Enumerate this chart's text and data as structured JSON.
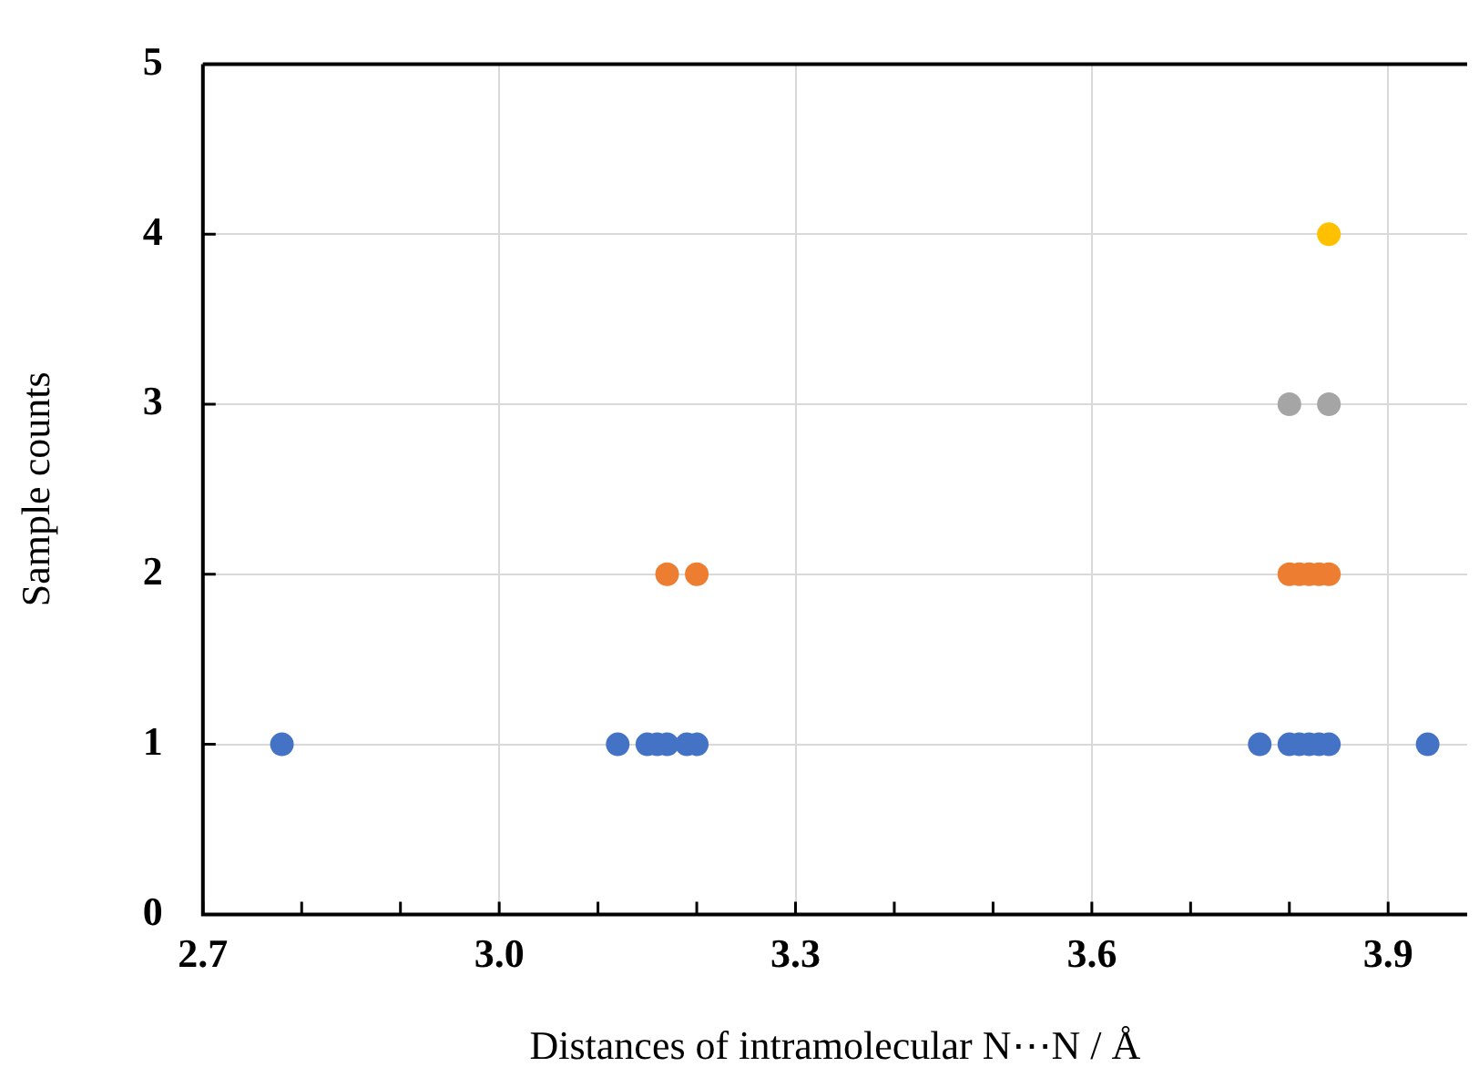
{
  "chart_data": {
    "type": "scatter",
    "xlabel": "Distances of intramolecular N⋯N / Å",
    "ylabel": "Sample counts",
    "xlim": [
      2.7,
      3.98
    ],
    "ylim": [
      0,
      5
    ],
    "xticks": [
      {
        "value": 2.7,
        "label": "2.7"
      },
      {
        "value": 2.8,
        "label": null
      },
      {
        "value": 2.9,
        "label": null
      },
      {
        "value": 3.0,
        "label": "3.0"
      },
      {
        "value": 3.1,
        "label": null
      },
      {
        "value": 3.2,
        "label": null
      },
      {
        "value": 3.3,
        "label": "3.3"
      },
      {
        "value": 3.4,
        "label": null
      },
      {
        "value": 3.5,
        "label": null
      },
      {
        "value": 3.6,
        "label": "3.6"
      },
      {
        "value": 3.7,
        "label": null
      },
      {
        "value": 3.8,
        "label": null
      },
      {
        "value": 3.9,
        "label": "3.9"
      }
    ],
    "yticks": [
      0,
      1,
      2,
      3,
      4,
      5
    ],
    "grid": true,
    "marker": "circle",
    "series": [
      {
        "color": "#4472c4",
        "x": [
          2.78,
          3.12,
          3.15,
          3.16,
          3.17,
          3.19,
          3.2,
          3.77,
          3.8,
          3.81,
          3.82,
          3.83,
          3.84,
          3.94
        ],
        "values": [
          1,
          1,
          1,
          1,
          1,
          1,
          1,
          1,
          1,
          1,
          1,
          1,
          1,
          1
        ]
      },
      {
        "color": "#ed7d31",
        "x": [
          3.17,
          3.2,
          3.8,
          3.81,
          3.82,
          3.83,
          3.84
        ],
        "values": [
          2,
          2,
          2,
          2,
          2,
          2,
          2
        ]
      },
      {
        "color": "#a5a5a5",
        "x": [
          3.8,
          3.84
        ],
        "values": [
          3,
          3
        ]
      },
      {
        "color": "#ffc000",
        "x": [
          3.84
        ],
        "values": [
          4
        ]
      }
    ]
  }
}
